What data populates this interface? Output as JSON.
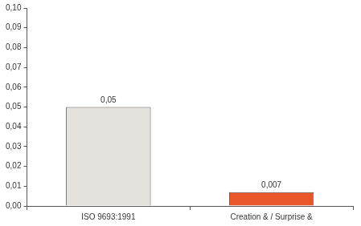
{
  "chart_data": {
    "type": "bar",
    "categories": [
      "ISO 9693:1991",
      "Creation & / Surprise &"
    ],
    "values": [
      0.05,
      0.007
    ],
    "value_labels": [
      "0,05",
      "0,007"
    ],
    "colors": [
      "#e5e2de",
      "#e8562a"
    ],
    "data_labels": true,
    "grid": false,
    "ylim": [
      0,
      0.1
    ],
    "yticks": [
      {
        "value": 0,
        "label": "0,00"
      },
      {
        "value": 0.01,
        "label": "0,01"
      },
      {
        "value": 0.02,
        "label": "0,02"
      },
      {
        "value": 0.03,
        "label": "0,03"
      },
      {
        "value": 0.04,
        "label": "0,04"
      },
      {
        "value": 0.05,
        "label": "0,05"
      },
      {
        "value": 0.06,
        "label": "0,06"
      },
      {
        "value": 0.07,
        "label": "0,07"
      },
      {
        "value": 0.08,
        "label": "0,08"
      },
      {
        "value": 0.09,
        "label": "0,09"
      },
      {
        "value": 0.1,
        "label": "0,10"
      }
    ]
  }
}
